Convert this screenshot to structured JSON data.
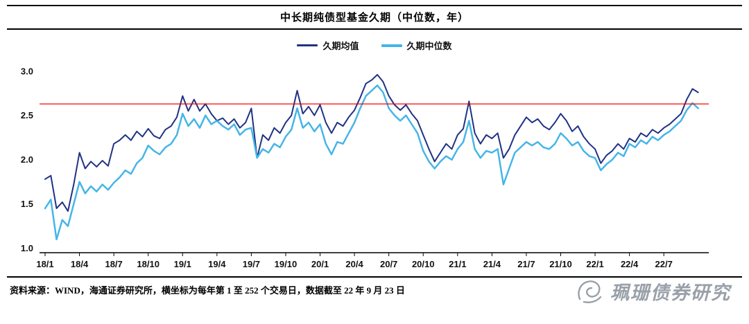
{
  "title": "中长期纯债型基金久期（中位数，年）",
  "legend": [
    {
      "label": "久期均值"
    },
    {
      "label": "久期中位数"
    }
  ],
  "footer": {
    "source_note": "资料来源：WIND，海通证券研究所，横坐标为每年第 1 至 252 个交易日，数据截至 22 年 9 月 23 日"
  },
  "watermark": {
    "text": "珮珊债券研究"
  },
  "chart_data": {
    "type": "line",
    "title": "中长期纯债型基金久期（中位数，年）",
    "xlabel": "",
    "ylabel": "",
    "x_unit": "months since 2018/01 (axis shown as trading days 1-252 per year)",
    "x_start": 0,
    "x_step": 0.5,
    "xlim": [
      0,
      57.5
    ],
    "ylim": [
      0.95,
      3.1
    ],
    "y_ticks": [
      1.0,
      1.5,
      2.0,
      2.5,
      3.0
    ],
    "y_tick_labels": [
      "1.0",
      "1.5",
      "2.0",
      "2.5",
      "3.0"
    ],
    "x_tick_positions": [
      0,
      3,
      6,
      9,
      12,
      15,
      18,
      21,
      24,
      27,
      30,
      33,
      36,
      39,
      42,
      45,
      48,
      51,
      54
    ],
    "x_tick_labels": [
      "18/1",
      "18/4",
      "18/7",
      "18/10",
      "19/1",
      "19/4",
      "19/7",
      "19/10",
      "20/1",
      "20/4",
      "20/7",
      "20/10",
      "21/1",
      "21/4",
      "21/7",
      "21/10",
      "22/1",
      "22/4",
      "22/7"
    ],
    "grid": false,
    "legend_position": "top-center",
    "reference_line": {
      "value": 2.63,
      "color": "#ff0000"
    },
    "series": [
      {
        "name": "久期均值",
        "color": "#1f3282",
        "width": 2,
        "values": [
          1.78,
          1.82,
          1.45,
          1.52,
          1.42,
          1.72,
          2.08,
          1.9,
          1.98,
          1.92,
          1.99,
          1.93,
          2.18,
          2.22,
          2.28,
          2.22,
          2.32,
          2.26,
          2.35,
          2.27,
          2.24,
          2.34,
          2.38,
          2.48,
          2.72,
          2.55,
          2.68,
          2.55,
          2.63,
          2.52,
          2.44,
          2.47,
          2.4,
          2.46,
          2.36,
          2.42,
          2.58,
          2.02,
          2.28,
          2.22,
          2.36,
          2.3,
          2.42,
          2.5,
          2.78,
          2.52,
          2.6,
          2.5,
          2.62,
          2.42,
          2.3,
          2.42,
          2.38,
          2.48,
          2.56,
          2.7,
          2.86,
          2.9,
          2.96,
          2.88,
          2.72,
          2.62,
          2.56,
          2.62,
          2.52,
          2.44,
          2.28,
          2.12,
          1.98,
          2.08,
          2.18,
          2.12,
          2.28,
          2.35,
          2.66,
          2.3,
          2.18,
          2.28,
          2.24,
          2.3,
          2.02,
          2.12,
          2.28,
          2.38,
          2.48,
          2.42,
          2.46,
          2.38,
          2.34,
          2.42,
          2.52,
          2.44,
          2.32,
          2.38,
          2.26,
          2.18,
          2.12,
          1.96,
          2.05,
          2.1,
          2.18,
          2.12,
          2.24,
          2.2,
          2.3,
          2.26,
          2.34,
          2.3,
          2.36,
          2.4,
          2.46,
          2.52,
          2.68,
          2.8,
          2.76
        ]
      },
      {
        "name": "久期中位数",
        "color": "#45b5e8",
        "width": 2.5,
        "values": [
          1.45,
          1.55,
          1.1,
          1.32,
          1.25,
          1.5,
          1.75,
          1.62,
          1.7,
          1.64,
          1.72,
          1.66,
          1.74,
          1.8,
          1.88,
          1.84,
          1.96,
          2.02,
          2.16,
          2.1,
          2.06,
          2.14,
          2.18,
          2.28,
          2.52,
          2.38,
          2.46,
          2.36,
          2.5,
          2.4,
          2.44,
          2.38,
          2.34,
          2.4,
          2.28,
          2.34,
          2.36,
          2.02,
          2.12,
          2.08,
          2.18,
          2.14,
          2.26,
          2.34,
          2.58,
          2.36,
          2.42,
          2.32,
          2.4,
          2.18,
          2.06,
          2.2,
          2.18,
          2.3,
          2.42,
          2.58,
          2.72,
          2.78,
          2.84,
          2.76,
          2.58,
          2.5,
          2.44,
          2.5,
          2.4,
          2.3,
          2.1,
          1.98,
          1.9,
          1.98,
          2.04,
          2.0,
          2.12,
          2.2,
          2.44,
          2.12,
          2.02,
          2.1,
          2.08,
          2.12,
          1.72,
          1.9,
          2.08,
          2.14,
          2.2,
          2.16,
          2.2,
          2.14,
          2.12,
          2.18,
          2.3,
          2.24,
          2.16,
          2.2,
          2.1,
          2.04,
          2.02,
          1.88,
          1.95,
          2.0,
          2.08,
          2.04,
          2.18,
          2.14,
          2.22,
          2.18,
          2.26,
          2.22,
          2.28,
          2.32,
          2.38,
          2.44,
          2.56,
          2.64,
          2.58
        ]
      }
    ]
  }
}
